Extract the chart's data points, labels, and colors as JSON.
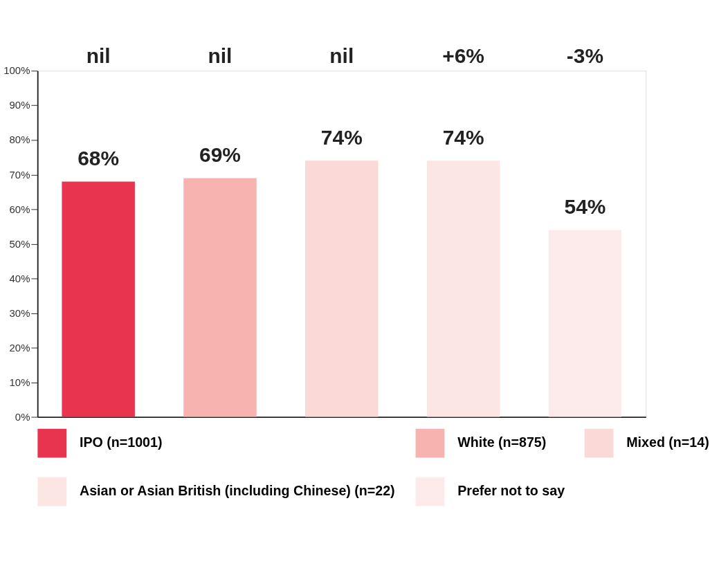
{
  "chart_data": {
    "type": "bar",
    "categories": [
      null,
      null,
      null,
      null,
      null
    ],
    "series": [
      {
        "name": "IPO (n=1001)",
        "color": "#e8344f",
        "values": [
          68,
          null,
          null,
          null,
          null
        ],
        "value_labels": [
          "68%",
          null,
          null,
          null,
          null
        ]
      },
      {
        "name": "White  (n=875)",
        "color": "#f6b3af",
        "values": [
          null,
          69,
          null,
          null,
          null
        ],
        "value_labels": [
          null,
          "69%",
          null,
          null,
          null
        ]
      },
      {
        "name": "Mixed (n=14)",
        "color": "#fad9d6",
        "values": [
          null,
          null,
          74,
          null,
          null
        ],
        "value_labels": [
          null,
          null,
          "74%",
          null,
          null
        ]
      },
      {
        "name": "Asian or Asian British (including Chinese) (n=22)",
        "color": "#fce6e4",
        "values": [
          null,
          null,
          null,
          74,
          null
        ],
        "value_labels": [
          null,
          null,
          null,
          "74%",
          null
        ]
      },
      {
        "name": "Prefer not to say",
        "color": "#fdeaea",
        "values": [
          null,
          null,
          null,
          null,
          54
        ],
        "value_labels": [
          null,
          null,
          null,
          null,
          "54%"
        ]
      }
    ],
    "annotations": [
      "nil",
      "nil",
      "nil",
      "+6%",
      "-3%"
    ],
    "ylim": [
      0,
      100
    ],
    "yticks": [
      {
        "value": 0,
        "label": "0%"
      },
      {
        "value": 10,
        "label": "10%"
      },
      {
        "value": 20,
        "label": "20%"
      },
      {
        "value": 30,
        "label": "30%"
      },
      {
        "value": 40,
        "label": "40%"
      },
      {
        "value": 50,
        "label": "50%"
      },
      {
        "value": 60,
        "label": "60%"
      },
      {
        "value": 70,
        "label": "70%"
      },
      {
        "value": 80,
        "label": "80%"
      },
      {
        "value": 90,
        "label": "90%"
      },
      {
        "value": 100,
        "label": "100%"
      }
    ],
    "tick_labels": "y",
    "grid": false,
    "legend": "bottom"
  }
}
